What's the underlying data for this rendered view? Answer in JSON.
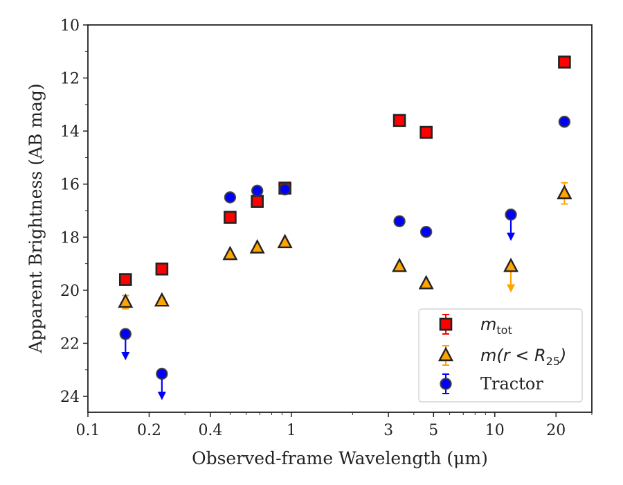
{
  "chart_data": {
    "type": "scatter",
    "xlabel": "Observed-frame Wavelength (μm)",
    "ylabel": "Apparent Brightness (AB mag)",
    "x_scale": "log",
    "xlim": [
      0.1,
      30
    ],
    "ylim": [
      24.6,
      10
    ],
    "y_inverted": true,
    "x_ticks": [
      {
        "value": 0.1,
        "label": "0.1"
      },
      {
        "value": 0.2,
        "label": "0.2"
      },
      {
        "value": 0.4,
        "label": "0.4"
      },
      {
        "value": 1,
        "label": "1"
      },
      {
        "value": 3,
        "label": "3"
      },
      {
        "value": 5,
        "label": "5"
      },
      {
        "value": 10,
        "label": "10"
      },
      {
        "value": 20,
        "label": "20"
      }
    ],
    "y_ticks": [
      {
        "value": 10,
        "label": "10"
      },
      {
        "value": 12,
        "label": "12"
      },
      {
        "value": 14,
        "label": "14"
      },
      {
        "value": 16,
        "label": "16"
      },
      {
        "value": 18,
        "label": "18"
      },
      {
        "value": 20,
        "label": "20"
      },
      {
        "value": 22,
        "label": "22"
      },
      {
        "value": 24,
        "label": "24"
      }
    ],
    "grid": false,
    "legend_position": "bottom-right",
    "series": [
      {
        "name": "m_tot",
        "legend_main": "m",
        "legend_sub": "tot",
        "marker": "square",
        "color": "#ff0000",
        "edge_color": "#222222",
        "points": [
          {
            "x": 0.153,
            "y": 19.6,
            "yerr": 0.15
          },
          {
            "x": 0.231,
            "y": 19.2,
            "yerr": 0.12
          },
          {
            "x": 0.5,
            "y": 17.25,
            "yerr": 0.1
          },
          {
            "x": 0.68,
            "y": 16.65,
            "yerr": 0.1
          },
          {
            "x": 0.93,
            "y": 16.15,
            "yerr": 0.08
          },
          {
            "x": 3.4,
            "y": 13.6,
            "yerr": 0.08
          },
          {
            "x": 4.6,
            "y": 14.05,
            "yerr": 0.08
          },
          {
            "x": 22,
            "y": 11.4,
            "yerr": 0.08
          }
        ]
      },
      {
        "name": "m(r < R_25)",
        "legend_main": "m(r < R",
        "legend_sub": "25",
        "legend_tail": ")",
        "marker": "triangle",
        "color": "#ffa500",
        "edge_color": "#222222",
        "points": [
          {
            "x": 0.153,
            "y": 20.45,
            "yerr": 0.25
          },
          {
            "x": 0.231,
            "y": 20.4,
            "yerr": 0.1
          },
          {
            "x": 0.5,
            "y": 18.65,
            "yerr": 0.08
          },
          {
            "x": 0.68,
            "y": 18.4,
            "yerr": 0.08
          },
          {
            "x": 0.93,
            "y": 18.2,
            "yerr": 0.08
          },
          {
            "x": 3.4,
            "y": 19.1,
            "yerr": 0.08
          },
          {
            "x": 4.6,
            "y": 19.75,
            "yerr": 0.08
          },
          {
            "x": 12,
            "y": 19.1,
            "upper_limit": true
          },
          {
            "x": 22,
            "y": 16.35,
            "yerr": 0.4
          }
        ]
      },
      {
        "name": "Tractor",
        "legend_main": "Tractor",
        "marker": "circle",
        "color": "#0000ff",
        "edge_color": "#333333",
        "points": [
          {
            "x": 0.153,
            "y": 21.65,
            "upper_limit": true
          },
          {
            "x": 0.231,
            "y": 23.15,
            "upper_limit": true
          },
          {
            "x": 0.5,
            "y": 16.5,
            "yerr": 0.05
          },
          {
            "x": 0.68,
            "y": 16.25,
            "yerr": 0.05
          },
          {
            "x": 0.93,
            "y": 16.2,
            "yerr": 0.05
          },
          {
            "x": 3.4,
            "y": 17.4,
            "yerr": 0.05
          },
          {
            "x": 4.6,
            "y": 17.8,
            "yerr": 0.05
          },
          {
            "x": 12,
            "y": 17.15,
            "upper_limit": true
          },
          {
            "x": 22,
            "y": 13.65,
            "yerr": 0.05
          }
        ]
      }
    ]
  }
}
